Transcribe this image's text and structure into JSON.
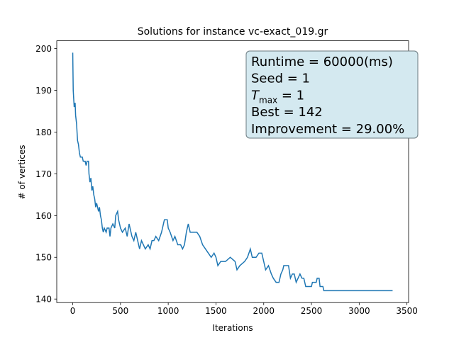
{
  "chart_data": {
    "type": "line",
    "title": "Solutions for instance vc-exact_019.gr",
    "x_label": "Iterations",
    "y_label": "# of vertices",
    "x": [
      0,
      5,
      10,
      15,
      25,
      30,
      40,
      50,
      60,
      70,
      80,
      100,
      110,
      130,
      140,
      150,
      165,
      170,
      180,
      190,
      200,
      210,
      220,
      230,
      240,
      250,
      270,
      280,
      290,
      300,
      310,
      320,
      330,
      350,
      360,
      380,
      390,
      400,
      420,
      440,
      450,
      470,
      480,
      500,
      520,
      550,
      570,
      590,
      600,
      620,
      640,
      660,
      680,
      700,
      720,
      740,
      760,
      790,
      810,
      830,
      850,
      870,
      900,
      930,
      950,
      960,
      990,
      1000,
      1020,
      1050,
      1070,
      1100,
      1130,
      1150,
      1170,
      1190,
      1210,
      1230,
      1270,
      1300,
      1330,
      1360,
      1390,
      1420,
      1450,
      1480,
      1500,
      1520,
      1550,
      1600,
      1650,
      1700,
      1720,
      1750,
      1800,
      1830,
      1860,
      1880,
      1920,
      1950,
      1980,
      2000,
      2020,
      2050,
      2080,
      2100,
      2130,
      2160,
      2180,
      2200,
      2210,
      2260,
      2280,
      2300,
      2320,
      2340,
      2380,
      2400,
      2420,
      2440,
      2500,
      2510,
      2550,
      2560,
      2580,
      2590,
      2620,
      2630,
      3350
    ],
    "series": [
      {
        "color": "#1f77b4",
        "values": [
          199,
          190,
          188,
          186,
          187,
          184,
          182,
          178,
          177,
          175,
          174,
          174,
          173,
          173,
          172,
          173,
          173,
          170,
          168,
          169,
          166,
          167,
          165,
          164,
          162,
          163,
          161,
          162,
          160,
          159,
          157,
          156,
          157,
          156,
          157,
          157,
          155,
          157,
          158,
          157,
          160,
          161,
          159,
          157,
          156,
          157,
          155,
          158,
          157,
          155,
          154,
          156,
          154,
          152,
          154,
          153,
          152,
          153,
          152,
          154,
          154,
          155,
          154,
          156,
          158,
          159,
          159,
          157,
          156,
          154,
          155,
          153,
          153,
          152,
          153,
          156,
          158,
          156,
          156,
          156,
          155,
          153,
          152,
          151,
          150,
          151,
          150,
          148,
          149,
          149,
          150,
          149,
          147,
          148,
          149,
          150,
          152,
          150,
          150,
          151,
          151,
          149,
          147,
          148,
          146,
          145,
          144,
          144,
          146,
          147,
          148,
          148,
          145,
          146,
          146,
          144,
          146,
          145,
          145,
          143,
          143,
          144,
          144,
          145,
          145,
          143,
          143,
          142,
          142
        ]
      }
    ],
    "xlim": [
      -167.5,
      3517.5
    ],
    "ylim": [
      139.15,
      201.85
    ],
    "xticks": [
      0,
      500,
      1000,
      1500,
      2000,
      2500,
      3000,
      3500
    ],
    "yticks": [
      140,
      150,
      160,
      170,
      180,
      190,
      200
    ],
    "annotation": [
      "Runtime = 60000(ms)",
      "Seed = 1",
      {
        "symbol": "T",
        "subscript": "max",
        "text": " = 1"
      },
      "Best = 142",
      "Improvement = 29.00%"
    ]
  }
}
